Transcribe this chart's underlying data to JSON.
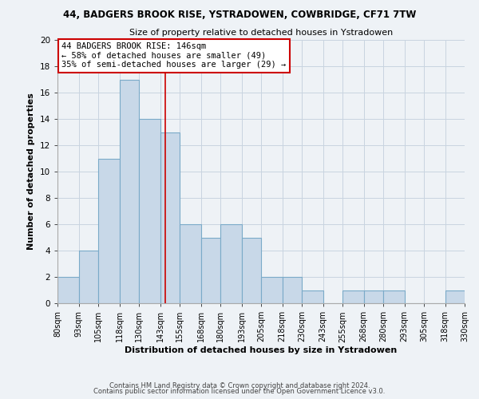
{
  "title_line1": "44, BADGERS BROOK RISE, YSTRADOWEN, COWBRIDGE, CF71 7TW",
  "title_line2": "Size of property relative to detached houses in Ystradowen",
  "xlabel": "Distribution of detached houses by size in Ystradowen",
  "ylabel": "Number of detached properties",
  "bar_edges": [
    80,
    93,
    105,
    118,
    130,
    143,
    155,
    168,
    180,
    193,
    205,
    218,
    230,
    243,
    255,
    268,
    280,
    293,
    305,
    318,
    330
  ],
  "bar_heights": [
    2,
    4,
    11,
    17,
    14,
    13,
    6,
    5,
    6,
    5,
    2,
    2,
    1,
    0,
    1,
    1,
    1,
    0,
    0,
    1
  ],
  "bar_color": "#c8d8e8",
  "bar_edge_color": "#7aaac8",
  "vline_x": 146,
  "vline_color": "#cc0000",
  "ylim": [
    0,
    20
  ],
  "yticks": [
    0,
    2,
    4,
    6,
    8,
    10,
    12,
    14,
    16,
    18,
    20
  ],
  "tick_labels": [
    "80sqm",
    "93sqm",
    "105sqm",
    "118sqm",
    "130sqm",
    "143sqm",
    "155sqm",
    "168sqm",
    "180sqm",
    "193sqm",
    "205sqm",
    "218sqm",
    "230sqm",
    "243sqm",
    "255sqm",
    "268sqm",
    "280sqm",
    "293sqm",
    "305sqm",
    "318sqm",
    "330sqm"
  ],
  "annotation_title": "44 BADGERS BROOK RISE: 146sqm",
  "annotation_line1": "← 58% of detached houses are smaller (49)",
  "annotation_line2": "35% of semi-detached houses are larger (29) →",
  "annotation_box_color": "#ffffff",
  "annotation_box_edge": "#cc0000",
  "footnote1": "Contains HM Land Registry data © Crown copyright and database right 2024.",
  "footnote2": "Contains public sector information licensed under the Open Government Licence v3.0.",
  "grid_color": "#c8d4e0",
  "background_color": "#eef2f6"
}
